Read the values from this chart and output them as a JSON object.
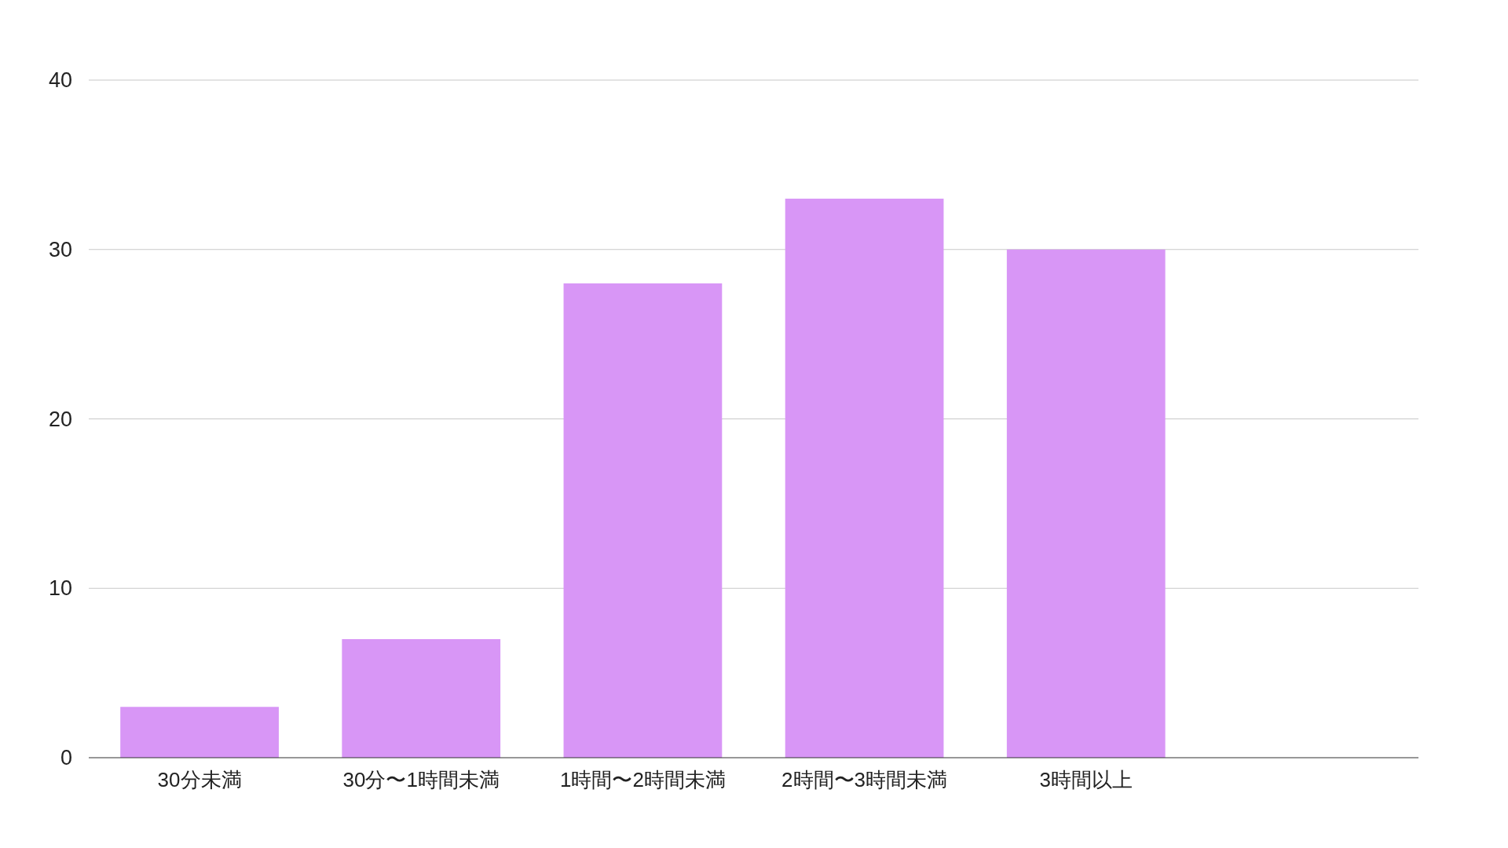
{
  "chart_data": {
    "type": "bar",
    "categories": [
      "30分未満",
      "30分〜1時間未満",
      "1時間〜2時間未満",
      "2時間〜3時間未満",
      "3時間以上",
      null
    ],
    "values": [
      3,
      7,
      28,
      33,
      30,
      null
    ],
    "color": "#d896f6",
    "ylim": [
      0,
      40
    ],
    "yticks": [
      0,
      10,
      20,
      30,
      40
    ],
    "grid": "y"
  }
}
